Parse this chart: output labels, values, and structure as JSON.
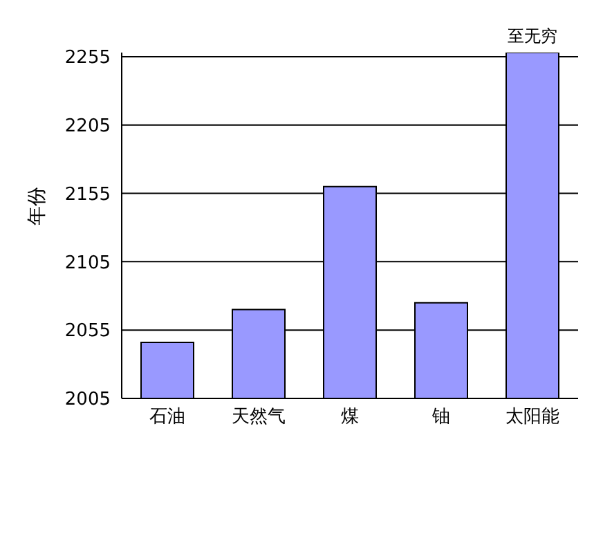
{
  "chart_data": {
    "type": "bar",
    "ylabel": "年份",
    "categories": [
      "石油",
      "天然气",
      "煤",
      "铀",
      "太阳能"
    ],
    "values": [
      2046,
      2070,
      2160,
      2075,
      2258
    ],
    "color": "#9999ff",
    "ylim": [
      2005,
      2258
    ],
    "yticks": [
      2005,
      2055,
      2105,
      2155,
      2205,
      2255
    ],
    "grid": "y",
    "annotations": [
      {
        "text": "至无穷",
        "x": "太阳能",
        "y": 2258
      }
    ]
  }
}
